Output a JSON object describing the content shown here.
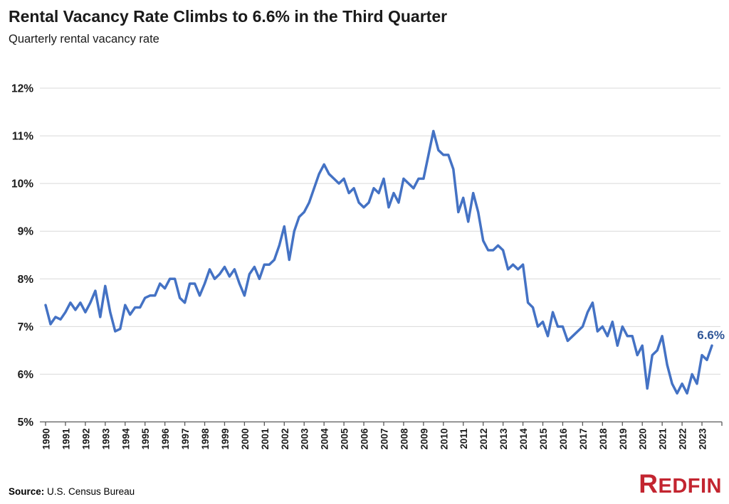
{
  "header": {
    "title": "Rental Vacancy Rate Climbs to 6.6% in the Third Quarter",
    "subtitle": "Quarterly rental vacancy rate"
  },
  "footer": {
    "source_label": "Source:",
    "source_text": "U.S. Census Bureau",
    "logo_text": "REDFIN"
  },
  "colors": {
    "line": "#4472C4",
    "annotation_text": "#2E5597",
    "gridline": "#D9D9D9",
    "axis": "#595959",
    "tick_text": "#1a1a1a",
    "logo_red": "#c32530"
  },
  "chart_data": {
    "type": "line",
    "title": "Rental Vacancy Rate Climbs to 6.6% in the Third Quarter",
    "subtitle": "Quarterly rental vacancy rate",
    "frequency": "quarterly",
    "x_start": "1990 Q1",
    "x_end": "2023 Q3",
    "unit": "%",
    "grid": "horizontal",
    "legend": "none",
    "ylim": [
      5,
      12
    ],
    "y_tick_labels": [
      "5%",
      "6%",
      "7%",
      "8%",
      "9%",
      "10%",
      "11%",
      "12%"
    ],
    "x_tick_labels": [
      "1990",
      "1991",
      "1992",
      "1993",
      "1994",
      "1995",
      "1996",
      "1997",
      "1998",
      "1999",
      "2000",
      "2001",
      "2002",
      "2003",
      "2004",
      "2005",
      "2006",
      "2007",
      "2008",
      "2009",
      "2010",
      "2011",
      "2012",
      "2013",
      "2014",
      "2015",
      "2016",
      "2017",
      "2018",
      "2019",
      "2020",
      "2021",
      "2022",
      "2023"
    ],
    "annotation": "6.6%",
    "series": [
      {
        "name": "Rental vacancy rate",
        "values": [
          7.45,
          7.05,
          7.2,
          7.15,
          7.3,
          7.5,
          7.35,
          7.5,
          7.3,
          7.5,
          7.75,
          7.2,
          7.85,
          7.3,
          6.9,
          6.95,
          7.45,
          7.25,
          7.4,
          7.4,
          7.6,
          7.65,
          7.65,
          7.9,
          7.8,
          8.0,
          8.0,
          7.6,
          7.5,
          7.9,
          7.9,
          7.65,
          7.9,
          8.2,
          8.0,
          8.1,
          8.25,
          8.05,
          8.2,
          7.9,
          7.65,
          8.1,
          8.25,
          8.0,
          8.3,
          8.3,
          8.4,
          8.7,
          9.1,
          8.4,
          9.0,
          9.3,
          9.4,
          9.6,
          9.9,
          10.2,
          10.4,
          10.2,
          10.1,
          10.0,
          10.1,
          9.8,
          9.9,
          9.6,
          9.5,
          9.6,
          9.9,
          9.8,
          10.1,
          9.5,
          9.8,
          9.6,
          10.1,
          10.0,
          9.9,
          10.1,
          10.1,
          10.6,
          11.1,
          10.7,
          10.6,
          10.6,
          10.3,
          9.4,
          9.7,
          9.2,
          9.8,
          9.4,
          8.8,
          8.6,
          8.6,
          8.7,
          8.6,
          8.2,
          8.3,
          8.2,
          8.3,
          7.5,
          7.4,
          7.0,
          7.1,
          6.8,
          7.3,
          7.0,
          7.0,
          6.7,
          6.8,
          6.9,
          7.0,
          7.3,
          7.5,
          6.9,
          7.0,
          6.8,
          7.1,
          6.6,
          7.0,
          6.8,
          6.8,
          6.4,
          6.6,
          5.7,
          6.4,
          6.5,
          6.8,
          6.2,
          5.8,
          5.6,
          5.8,
          5.6,
          6.0,
          5.8,
          6.4,
          6.3,
          6.6
        ]
      }
    ]
  }
}
